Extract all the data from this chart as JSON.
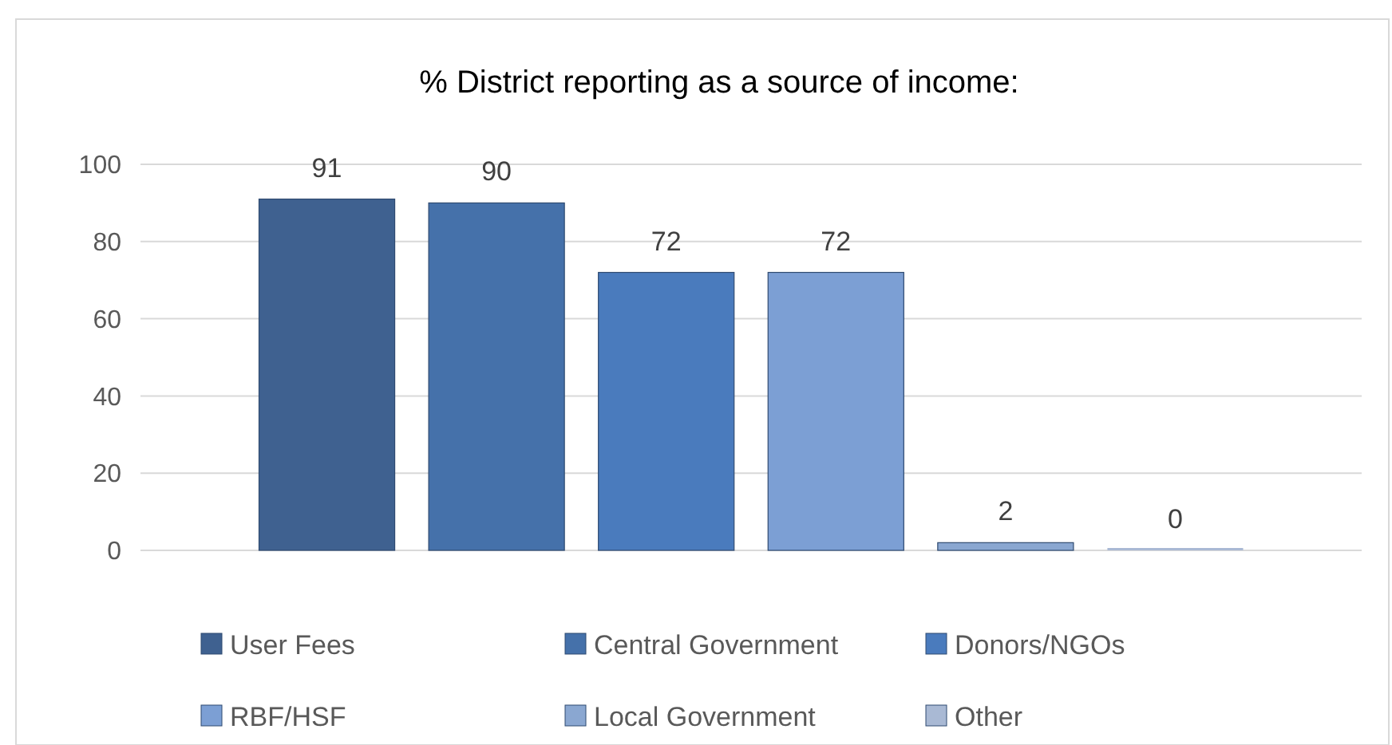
{
  "chart_data": {
    "type": "bar",
    "title": "% District reporting as a source of income:",
    "categories": [
      null
    ],
    "series": [
      {
        "name": "User Fees",
        "color": "#3f6190",
        "values": [
          91
        ]
      },
      {
        "name": "Central Government",
        "color": "#4571aa",
        "values": [
          90
        ]
      },
      {
        "name": "Donors/NGOs",
        "color": "#4a7bbd",
        "values": [
          72
        ]
      },
      {
        "name": "RBF/HSF",
        "color": "#7c9fd4",
        "values": [
          72
        ]
      },
      {
        "name": "Local Government",
        "color": "#8aa7d1",
        "values": [
          2
        ]
      },
      {
        "name": "Other",
        "color": "#a9b9d4",
        "values": [
          0
        ]
      }
    ],
    "ylim": [
      0,
      100
    ],
    "yticks": [
      0,
      20,
      40,
      60,
      80,
      100
    ],
    "grid": "y",
    "legend": "bottom",
    "data_labels": true
  }
}
